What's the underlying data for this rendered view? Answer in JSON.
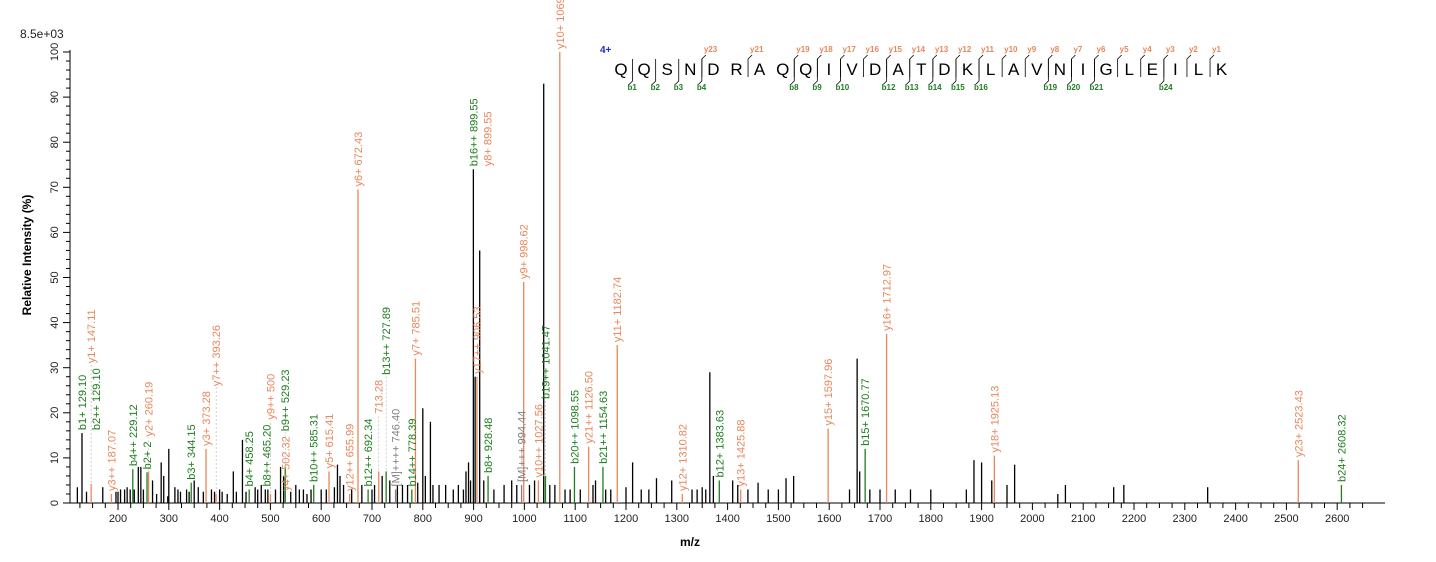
{
  "chart_data": {
    "type": "bar",
    "title": "",
    "scale_label": "8.5e+03",
    "xlabel": "m/z",
    "ylabel": "Relative   Intensity (%)",
    "xlim": [
      105,
      2690
    ],
    "ylim": [
      0,
      100
    ],
    "x_ticks": [
      200,
      300,
      400,
      500,
      600,
      700,
      800,
      900,
      1000,
      1100,
      1200,
      1300,
      1400,
      1500,
      1600,
      1700,
      1800,
      1900,
      2000,
      2100,
      2200,
      2300,
      2400,
      2500,
      2600
    ],
    "y_ticks": [
      0,
      10,
      20,
      30,
      40,
      50,
      60,
      70,
      80,
      90,
      100
    ],
    "colors": {
      "y_ion": "#e8875c",
      "b_ion": "#1e7d1e",
      "unassigned": "#000000",
      "other": "#808080",
      "charge": "#1f2fbf"
    },
    "annotated_peaks": [
      {
        "label": "b1+ 129.10",
        "mz": 129.1,
        "intensity": 15.5,
        "kind": "b",
        "line": "unassigned"
      },
      {
        "label": "b2++ 129.10",
        "mz": 129.1,
        "intensity": 15.5,
        "kind": "b",
        "stack": 1,
        "line": "none"
      },
      {
        "label": "y1+ 147.11",
        "mz": 147.11,
        "intensity": 4.2,
        "kind": "y"
      },
      {
        "label": "y3++ 187.07",
        "mz": 187.07,
        "intensity": 2.0,
        "kind": "y"
      },
      {
        "label": "b4++ 229.12",
        "mz": 229.12,
        "intensity": 7.5,
        "kind": "b"
      },
      {
        "label": "b2+ 2",
        "mz": 257.13,
        "intensity": 6.8,
        "kind": "b"
      },
      {
        "label": "y2+ 260.19",
        "mz": 260.19,
        "intensity": 7.0,
        "kind": "y"
      },
      {
        "label": "b3+ 344.15",
        "mz": 344.15,
        "intensity": 4.5,
        "kind": "b"
      },
      {
        "label": "y3+ 373.28",
        "mz": 373.28,
        "intensity": 12.0,
        "kind": "y"
      },
      {
        "label": "y7++ 393.26",
        "mz": 393.26,
        "intensity": 2.0,
        "kind": "y"
      },
      {
        "label": "b4+ 458.25",
        "mz": 458.25,
        "intensity": 3.0,
        "kind": "b"
      },
      {
        "label": "b8++ 465.20",
        "mz": 465.2,
        "intensity": 3.0,
        "kind": "b",
        "stack": 1,
        "line": "none"
      },
      {
        "label": "y9++ 500",
        "mz": 500.1,
        "intensity": 2.0,
        "kind": "y"
      },
      {
        "label": "y4+ 502.32",
        "mz": 502.32,
        "intensity": 2.0,
        "kind": "y",
        "stack": 1,
        "line": "none"
      },
      {
        "label": "b9++ 529.23",
        "mz": 529.23,
        "intensity": 8.0,
        "kind": "b"
      },
      {
        "label": "b10++ 585.31",
        "mz": 585.31,
        "intensity": 4.0,
        "kind": "b"
      },
      {
        "label": "y5+ 615.41",
        "mz": 615.41,
        "intensity": 7.0,
        "kind": "y"
      },
      {
        "label": "y12++ 655.99",
        "mz": 655.99,
        "intensity": 2.0,
        "kind": "y"
      },
      {
        "label": "y6+ 672.43",
        "mz": 672.43,
        "intensity": 69.5,
        "kind": "y"
      },
      {
        "label": "b12++ 692.34",
        "mz": 692.34,
        "intensity": 3.0,
        "kind": "b"
      },
      {
        "label": "713.28",
        "mz": 713.28,
        "intensity": 7.0,
        "kind": "y"
      },
      {
        "label": "b13++ 727.89",
        "mz": 727.89,
        "intensity": 7.0,
        "kind": "b"
      },
      {
        "label": "[M]++++ 746.40",
        "mz": 746.4,
        "intensity": 3.0,
        "kind": "other"
      },
      {
        "label": "b14++ 778.39",
        "mz": 778.39,
        "intensity": 3.0,
        "kind": "b"
      },
      {
        "label": "y7+ 785.51",
        "mz": 785.51,
        "intensity": 32.0,
        "kind": "y"
      },
      {
        "label": "b16++ 899.55",
        "mz": 899.55,
        "intensity": 74.0,
        "kind": "b",
        "line": "unassigned"
      },
      {
        "label": "y8+ 899.55",
        "mz": 899.55,
        "intensity": 74.0,
        "kind": "y",
        "stack": 1,
        "line": "none"
      },
      {
        "label": "y17++ 906.53",
        "mz": 906.53,
        "intensity": 28.0,
        "kind": "y"
      },
      {
        "label": "b8+ 928.48",
        "mz": 928.48,
        "intensity": 6.0,
        "kind": "b"
      },
      {
        "label": "[M]+++ 994.44",
        "mz": 994.44,
        "intensity": 4.0,
        "kind": "other"
      },
      {
        "label": "y9+ 998.62",
        "mz": 998.62,
        "intensity": 49.0,
        "kind": "y"
      },
      {
        "label": "y10++ 1027.56",
        "mz": 1027.56,
        "intensity": 5.0,
        "kind": "y"
      },
      {
        "label": "b19++ 1041.47",
        "mz": 1041.47,
        "intensity": 6.0,
        "kind": "b"
      },
      {
        "label": "y10+ 1069.66",
        "mz": 1069.66,
        "intensity": 100.0,
        "kind": "y"
      },
      {
        "label": "b20++ 1098.55",
        "mz": 1098.55,
        "intensity": 8.0,
        "kind": "b"
      },
      {
        "label": "y21++ 1126.50",
        "mz": 1126.5,
        "intensity": 12.5,
        "kind": "y"
      },
      {
        "label": "b21++ 1154.63",
        "mz": 1154.63,
        "intensity": 8.0,
        "kind": "b"
      },
      {
        "label": "y11+ 1182.74",
        "mz": 1182.74,
        "intensity": 35.0,
        "kind": "y"
      },
      {
        "label": "y12+ 1310.82",
        "mz": 1310.82,
        "intensity": 2.0,
        "kind": "y"
      },
      {
        "label": "b12+ 1383.63",
        "mz": 1383.63,
        "intensity": 5.0,
        "kind": "b"
      },
      {
        "label": "y13+ 1425.88",
        "mz": 1425.88,
        "intensity": 3.0,
        "kind": "y"
      },
      {
        "label": "y15+ 1597.96",
        "mz": 1597.96,
        "intensity": 16.5,
        "kind": "y"
      },
      {
        "label": "b15+ 1670.77",
        "mz": 1670.77,
        "intensity": 12.0,
        "kind": "b"
      },
      {
        "label": "y16+ 1712.97",
        "mz": 1712.97,
        "intensity": 37.5,
        "kind": "y"
      },
      {
        "label": "y18+ 1925.13",
        "mz": 1925.13,
        "intensity": 10.5,
        "kind": "y"
      },
      {
        "label": "y23+ 2523.43",
        "mz": 2523.43,
        "intensity": 9.5,
        "kind": "y"
      },
      {
        "label": "b24+ 2608.32",
        "mz": 2608.32,
        "intensity": 4.0,
        "kind": "b"
      }
    ],
    "unassigned_peaks": [
      [
        120,
        3.5
      ],
      [
        138,
        2.5
      ],
      [
        170,
        3.5
      ],
      [
        196,
        2.5
      ],
      [
        200,
        2.5
      ],
      [
        205,
        3
      ],
      [
        213,
        3
      ],
      [
        218,
        3.5
      ],
      [
        224,
        3
      ],
      [
        232,
        3
      ],
      [
        240,
        8
      ],
      [
        245,
        8
      ],
      [
        250,
        3
      ],
      [
        268,
        5
      ],
      [
        276,
        2
      ],
      [
        285,
        9
      ],
      [
        290,
        6
      ],
      [
        298,
        1.5
      ],
      [
        300,
        12
      ],
      [
        312,
        3.5
      ],
      [
        318,
        3
      ],
      [
        323,
        2.5
      ],
      [
        335,
        3
      ],
      [
        340,
        2.5
      ],
      [
        350,
        5
      ],
      [
        358,
        3.5
      ],
      [
        368,
        2.5
      ],
      [
        384,
        3
      ],
      [
        390,
        2.5
      ],
      [
        400,
        3
      ],
      [
        405,
        2.5
      ],
      [
        415,
        2
      ],
      [
        427,
        7
      ],
      [
        433,
        2.5
      ],
      [
        445,
        14
      ],
      [
        452,
        2.5
      ],
      [
        470,
        3.5
      ],
      [
        475,
        3
      ],
      [
        482,
        4
      ],
      [
        490,
        3
      ],
      [
        495,
        3
      ],
      [
        510,
        3
      ],
      [
        520,
        8
      ],
      [
        526,
        6
      ],
      [
        540,
        2.5
      ],
      [
        550,
        4
      ],
      [
        557,
        3
      ],
      [
        565,
        3
      ],
      [
        572,
        2
      ],
      [
        580,
        3
      ],
      [
        600,
        3
      ],
      [
        610,
        3
      ],
      [
        626,
        3.5
      ],
      [
        632,
        8.5
      ],
      [
        637,
        6
      ],
      [
        644,
        4
      ],
      [
        660,
        3
      ],
      [
        680,
        4
      ],
      [
        700,
        3
      ],
      [
        705,
        4
      ],
      [
        720,
        6
      ],
      [
        735,
        5
      ],
      [
        750,
        4
      ],
      [
        760,
        4
      ],
      [
        770,
        4
      ],
      [
        790,
        4.5
      ],
      [
        800,
        21
      ],
      [
        805,
        6
      ],
      [
        815,
        18
      ],
      [
        820,
        4
      ],
      [
        832,
        4
      ],
      [
        845,
        4
      ],
      [
        860,
        3
      ],
      [
        870,
        4
      ],
      [
        880,
        3
      ],
      [
        885,
        7
      ],
      [
        890,
        9
      ],
      [
        894,
        5
      ],
      [
        903,
        28
      ],
      [
        912,
        56
      ],
      [
        920,
        5
      ],
      [
        940,
        3
      ],
      [
        960,
        4
      ],
      [
        975,
        5
      ],
      [
        985,
        4
      ],
      [
        1010,
        4
      ],
      [
        1020,
        5
      ],
      [
        1038,
        93
      ],
      [
        1050,
        4
      ],
      [
        1060,
        4
      ],
      [
        1080,
        3
      ],
      [
        1090,
        3
      ],
      [
        1110,
        3
      ],
      [
        1135,
        4
      ],
      [
        1140,
        5
      ],
      [
        1160,
        3
      ],
      [
        1170,
        3
      ],
      [
        1200,
        3.5
      ],
      [
        1213,
        9
      ],
      [
        1230,
        3
      ],
      [
        1245,
        3
      ],
      [
        1260,
        5.5
      ],
      [
        1290,
        5
      ],
      [
        1330,
        3
      ],
      [
        1340,
        3
      ],
      [
        1350,
        3.5
      ],
      [
        1357,
        3
      ],
      [
        1365,
        29
      ],
      [
        1372,
        6
      ],
      [
        1410,
        5
      ],
      [
        1420,
        4
      ],
      [
        1440,
        3
      ],
      [
        1460,
        4.5
      ],
      [
        1480,
        3
      ],
      [
        1500,
        3
      ],
      [
        1515,
        5.5
      ],
      [
        1530,
        6
      ],
      [
        1640,
        3
      ],
      [
        1655,
        32
      ],
      [
        1660,
        7
      ],
      [
        1680,
        3
      ],
      [
        1700,
        3
      ],
      [
        1730,
        3
      ],
      [
        1760,
        3
      ],
      [
        1800,
        3
      ],
      [
        1870,
        3
      ],
      [
        1885,
        9.5
      ],
      [
        1900,
        9
      ],
      [
        1920,
        5
      ],
      [
        1950,
        4
      ],
      [
        1965,
        8.5
      ],
      [
        2050,
        2
      ],
      [
        2065,
        4
      ],
      [
        2160,
        3.5
      ],
      [
        2180,
        4
      ],
      [
        2345,
        3.5
      ]
    ]
  },
  "sequence": {
    "charge": "4+",
    "residues": [
      "Q",
      "Q",
      "S",
      "N",
      "D",
      "R",
      "A",
      "Q",
      "Q",
      "I",
      "V",
      "D",
      "A",
      "T",
      "D",
      "K",
      "L",
      "A",
      "V",
      "N",
      "I",
      "G",
      "L",
      "E",
      "I",
      "L",
      "K"
    ],
    "b_ions": [
      1,
      2,
      3,
      4,
      8,
      9,
      10,
      12,
      13,
      14,
      15,
      16,
      19,
      20,
      21,
      24
    ],
    "y_ions": [
      23,
      21,
      19,
      18,
      17,
      16,
      15,
      14,
      13,
      12,
      11,
      10,
      9,
      8,
      7,
      6,
      5,
      4,
      3,
      2,
      1
    ]
  }
}
